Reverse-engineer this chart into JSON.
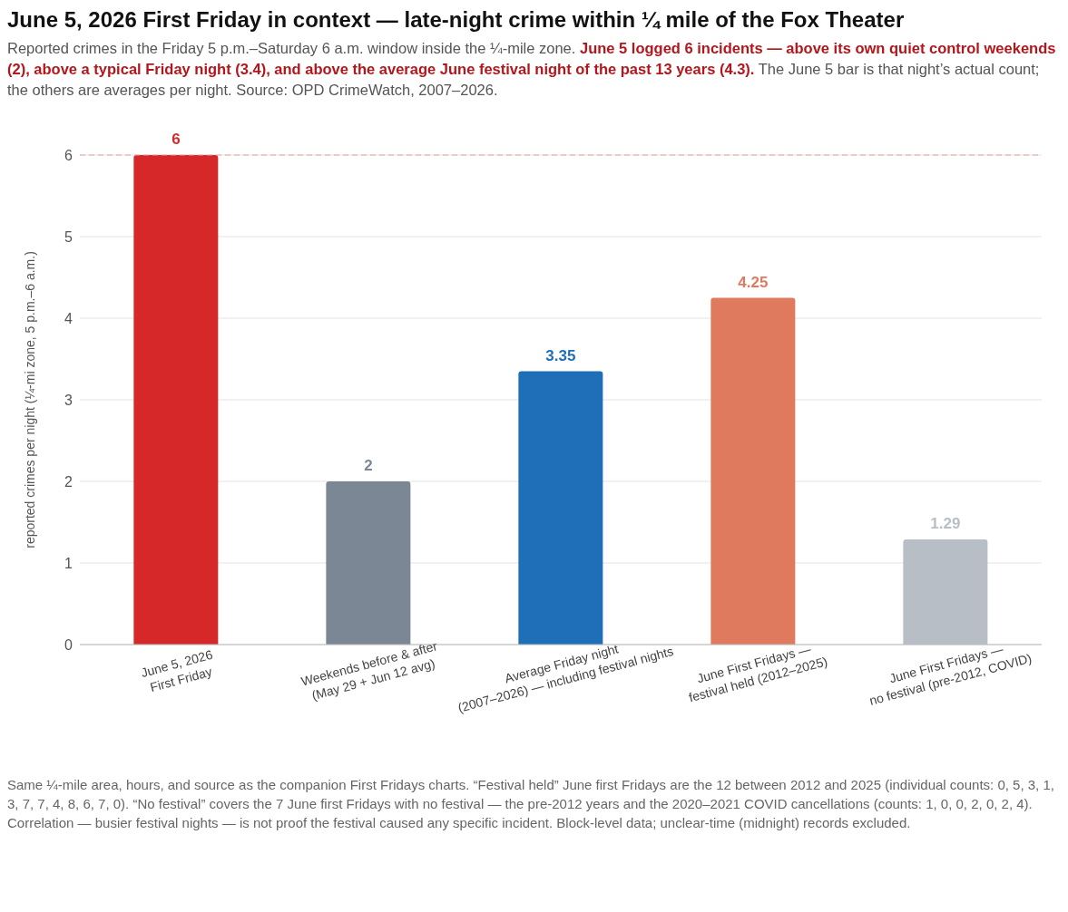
{
  "chart_data": {
    "type": "bar",
    "title": "June 5, 2026 First Friday in context — late-night crime within ¼ mile of the Fox Theater",
    "subtitle": "Reported crimes in the Friday 5 p.m.–Saturday 6 a.m. window inside the ¼-mile zone.",
    "annotations": [
      "June 5 logged 6 incidents — above its own quiet control weekends (2), above a typical Friday night (3.4), and above the average June festival night of the past 13 years (4.3).",
      "The June 5 bar is that night’s actual count; the others are averages per night. Source: OPD CrimeWatch, 2007–2026.",
      "Same ¼-mile area, hours, and source as the companion First Fridays charts. “Festival held” June first Fridays are the 12 between 2012 and 2025 (individual counts: 0, 5, 3, 1, 3, 7, 7, 4, 8, 6, 7, 0). “No festival” covers the 7 June first Fridays with no festival — the pre-2012 years and the 2020–2021 COVID cancellations (counts: 1, 0, 0, 2, 0, 2, 4). Correlation — busier festival nights — is not proof the festival caused any specific incident. Block-level data; unclear-time (midnight) records excluded."
    ],
    "ylabel": "reported crimes per night (¼-mi zone, 5 p.m.–6 a.m.)",
    "categories": [
      "June 5, 2026\nFirst Friday",
      "Weekends before & after\n(May 29 + Jun 12 avg)",
      "Average Friday night\n(2007–2026) — including festival nights",
      "June First Fridays —\nfestival held (2012–2025)",
      "June First Fridays —\nno festival (pre-2012, COVID)"
    ],
    "values": [
      6,
      2,
      3.35,
      4.25,
      1.29
    ],
    "colors": [
      "#d62828",
      "#7b8794",
      "#1f6fb8",
      "#e07a5f",
      "#b8bec6"
    ],
    "ylim": [
      0,
      6
    ],
    "yticks": [
      0,
      1,
      2,
      3,
      4,
      5,
      6
    ],
    "grid": "y",
    "data_labels": true,
    "ref_lines": [
      {
        "axis": "y",
        "value": 6,
        "color": "#e8a3a3",
        "line_style": "dashed"
      }
    ]
  }
}
